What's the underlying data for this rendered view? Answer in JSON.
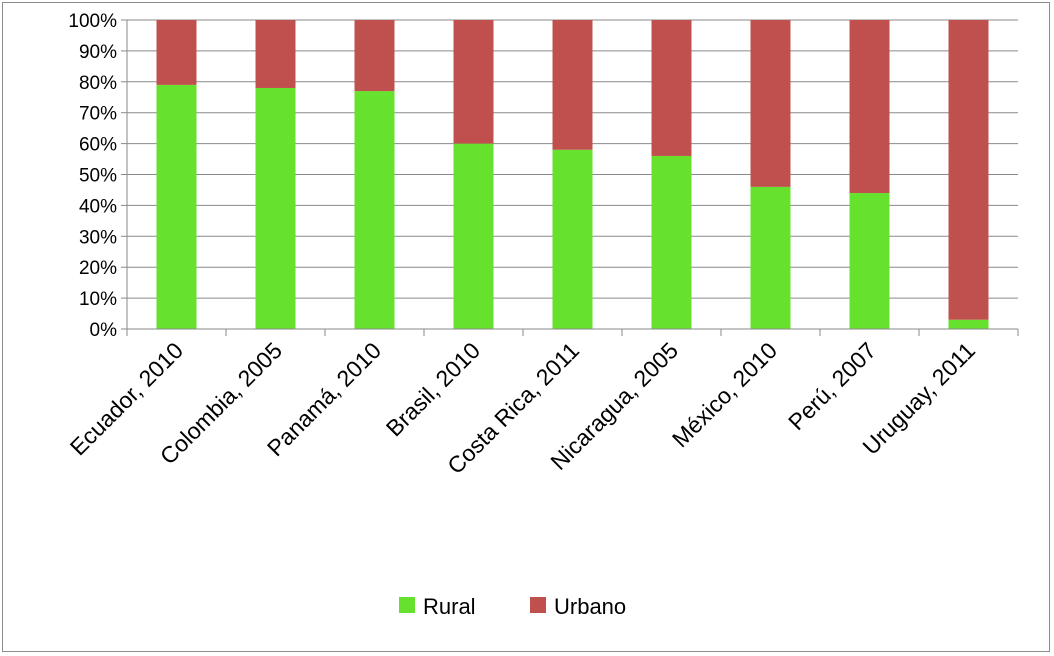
{
  "chart_data": {
    "type": "bar",
    "stacked": true,
    "percent": true,
    "categories": [
      "Ecuador, 2010",
      "Colombia, 2005",
      "Panamá, 2010",
      "Brasil, 2010",
      "Costa Rica, 2011",
      "Nicaragua, 2005",
      "México, 2010",
      "Perú, 2007",
      "Uruguay, 2011"
    ],
    "series": [
      {
        "name": "Rural",
        "color": "#66e22e",
        "values": [
          79,
          78,
          77,
          60,
          58,
          56,
          46,
          44,
          3
        ]
      },
      {
        "name": "Urbano",
        "color": "#c0504d",
        "values": [
          21,
          22,
          23,
          40,
          42,
          44,
          54,
          56,
          97
        ]
      }
    ],
    "ylim": [
      0,
      100
    ],
    "yticks": [
      "0%",
      "10%",
      "20%",
      "30%",
      "40%",
      "50%",
      "60%",
      "70%",
      "80%",
      "90%",
      "100%"
    ],
    "grid": true,
    "legend_position": "bottom"
  }
}
